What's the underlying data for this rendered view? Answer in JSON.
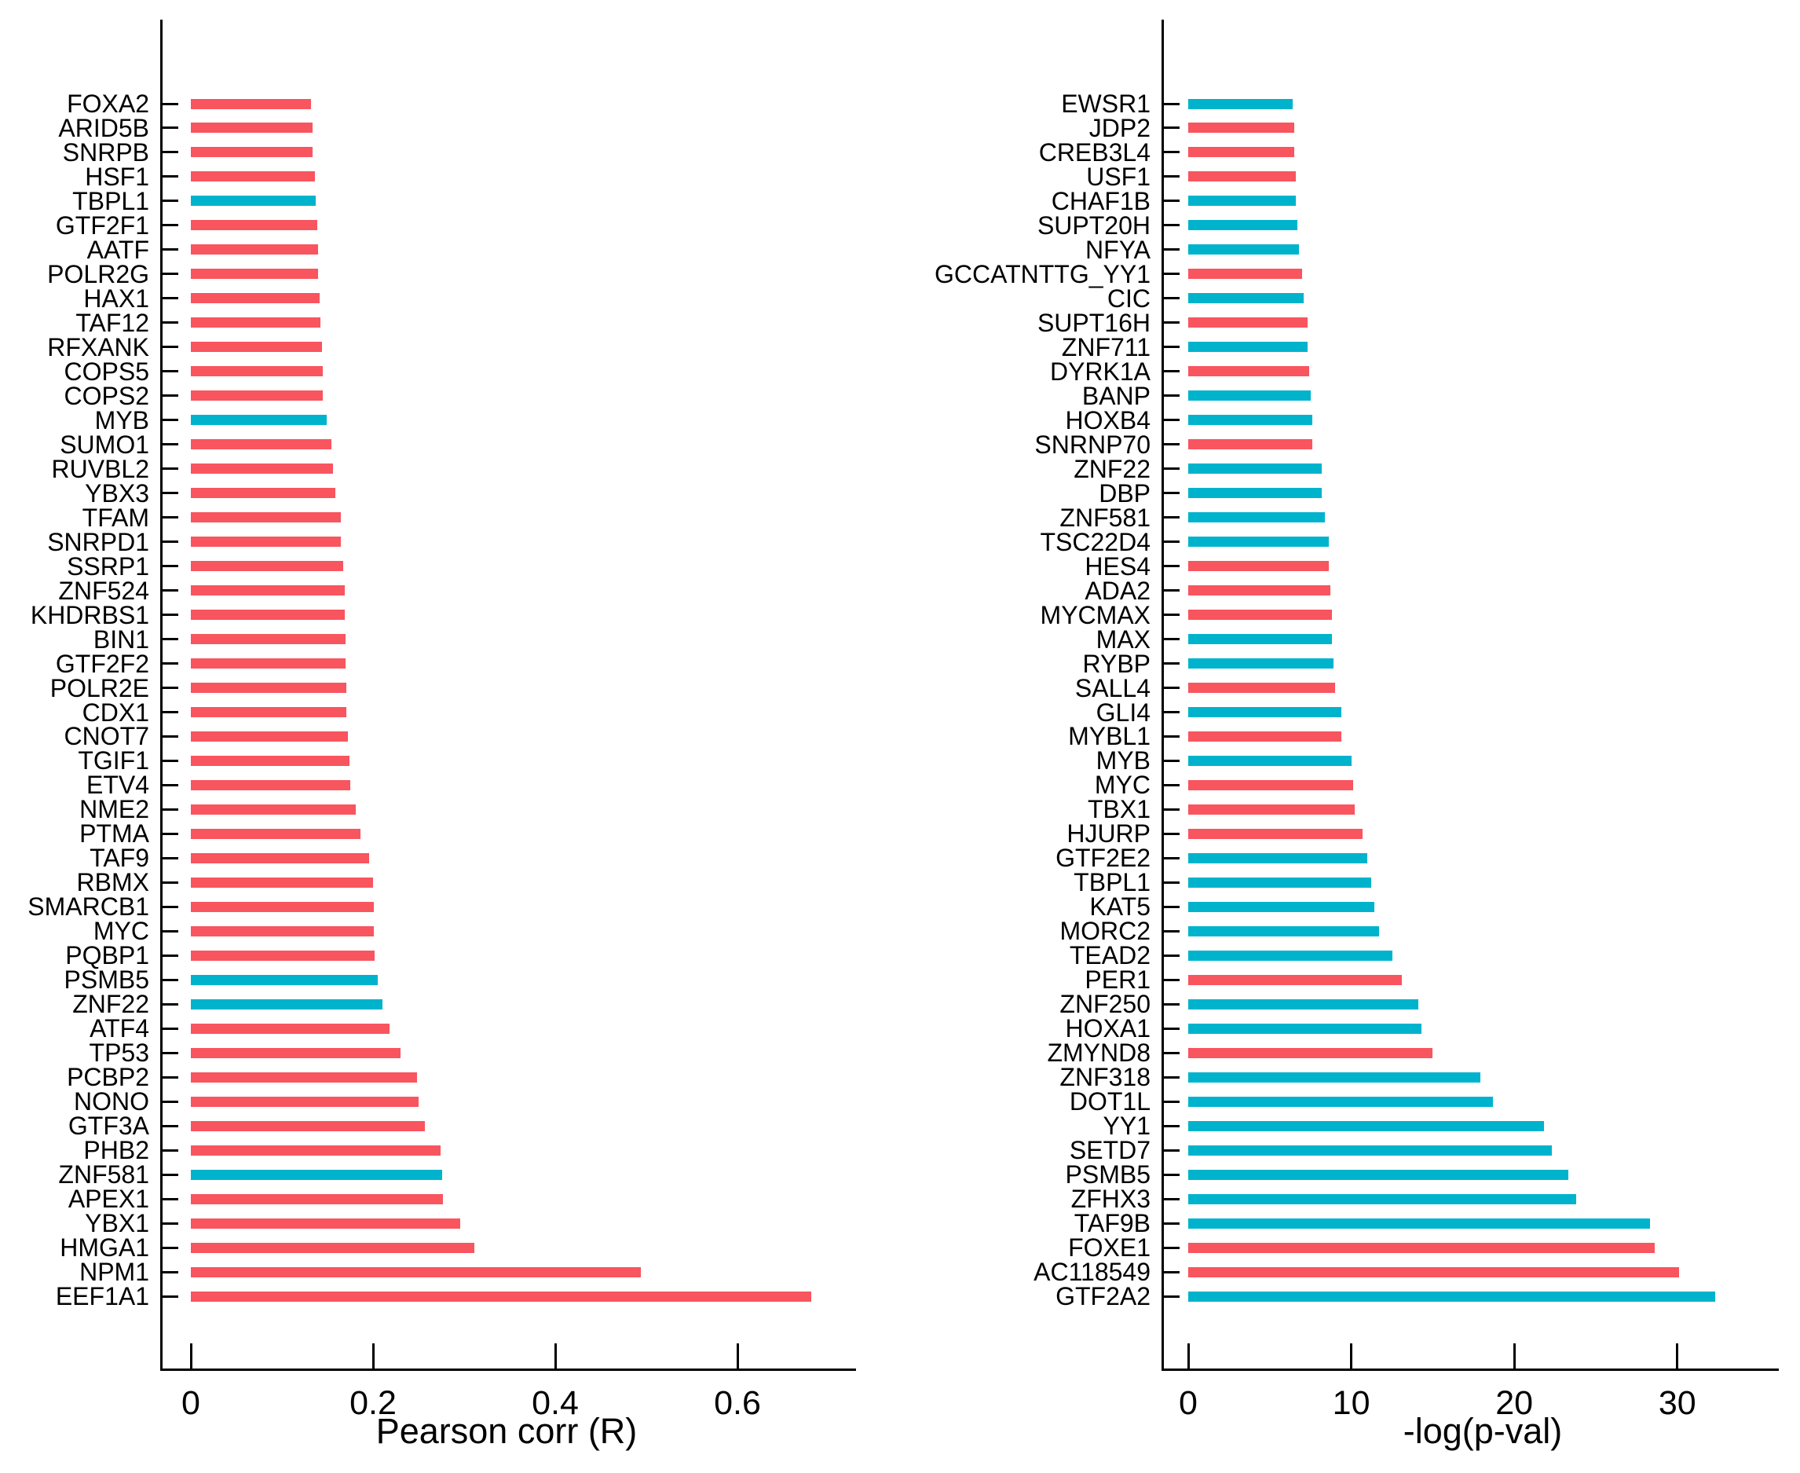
{
  "colors": {
    "red": "#F8555F",
    "cyan": "#00B3CD",
    "axis": "#000000",
    "background": "#ffffff"
  },
  "chart_data": [
    {
      "type": "bar",
      "orientation": "horizontal",
      "title": "",
      "xlabel": "Pearson corr (R)",
      "ylabel": "",
      "grid": false,
      "xlim": [
        0,
        0.73
      ],
      "xticks": {
        "values": [
          0,
          0.2,
          0.4,
          0.6
        ],
        "labels": [
          "0",
          "0.2",
          "0.4",
          "0.6"
        ]
      },
      "bars": [
        {
          "label": "FOXA2",
          "value": 0.132,
          "color": "red"
        },
        {
          "label": "ARID5B",
          "value": 0.134,
          "color": "red"
        },
        {
          "label": "SNRPB",
          "value": 0.134,
          "color": "red"
        },
        {
          "label": "HSF1",
          "value": 0.136,
          "color": "red"
        },
        {
          "label": "TBPL1",
          "value": 0.137,
          "color": "cyan"
        },
        {
          "label": "GTF2F1",
          "value": 0.139,
          "color": "red"
        },
        {
          "label": "AATF",
          "value": 0.14,
          "color": "red"
        },
        {
          "label": "POLR2G",
          "value": 0.14,
          "color": "red"
        },
        {
          "label": "HAX1",
          "value": 0.141,
          "color": "red"
        },
        {
          "label": "TAF12",
          "value": 0.142,
          "color": "red"
        },
        {
          "label": "RFXANK",
          "value": 0.144,
          "color": "red"
        },
        {
          "label": "COPS5",
          "value": 0.145,
          "color": "red"
        },
        {
          "label": "COPS2",
          "value": 0.145,
          "color": "red"
        },
        {
          "label": "MYB",
          "value": 0.149,
          "color": "cyan"
        },
        {
          "label": "SUMO1",
          "value": 0.154,
          "color": "red"
        },
        {
          "label": "RUVBL2",
          "value": 0.156,
          "color": "red"
        },
        {
          "label": "YBX3",
          "value": 0.159,
          "color": "red"
        },
        {
          "label": "TFAM",
          "value": 0.165,
          "color": "red"
        },
        {
          "label": "SNRPD1",
          "value": 0.165,
          "color": "red"
        },
        {
          "label": "SSRP1",
          "value": 0.167,
          "color": "red"
        },
        {
          "label": "ZNF524",
          "value": 0.169,
          "color": "red"
        },
        {
          "label": "KHDRBS1",
          "value": 0.169,
          "color": "red"
        },
        {
          "label": "BIN1",
          "value": 0.17,
          "color": "red"
        },
        {
          "label": "GTF2F2",
          "value": 0.17,
          "color": "red"
        },
        {
          "label": "POLR2E",
          "value": 0.171,
          "color": "red"
        },
        {
          "label": "CDX1",
          "value": 0.171,
          "color": "red"
        },
        {
          "label": "CNOT7",
          "value": 0.172,
          "color": "red"
        },
        {
          "label": "TGIF1",
          "value": 0.174,
          "color": "red"
        },
        {
          "label": "ETV4",
          "value": 0.175,
          "color": "red"
        },
        {
          "label": "NME2",
          "value": 0.181,
          "color": "red"
        },
        {
          "label": "PTMA",
          "value": 0.186,
          "color": "red"
        },
        {
          "label": "TAF9",
          "value": 0.196,
          "color": "red"
        },
        {
          "label": "RBMX",
          "value": 0.2,
          "color": "red"
        },
        {
          "label": "SMARCB1",
          "value": 0.201,
          "color": "red"
        },
        {
          "label": "MYC",
          "value": 0.201,
          "color": "red"
        },
        {
          "label": "PQBP1",
          "value": 0.202,
          "color": "red"
        },
        {
          "label": "PSMB5",
          "value": 0.205,
          "color": "cyan"
        },
        {
          "label": "ZNF22",
          "value": 0.21,
          "color": "cyan"
        },
        {
          "label": "ATF4",
          "value": 0.218,
          "color": "red"
        },
        {
          "label": "TP53",
          "value": 0.23,
          "color": "red"
        },
        {
          "label": "PCBP2",
          "value": 0.248,
          "color": "red"
        },
        {
          "label": "NONO",
          "value": 0.25,
          "color": "red"
        },
        {
          "label": "GTF3A",
          "value": 0.257,
          "color": "red"
        },
        {
          "label": "PHB2",
          "value": 0.274,
          "color": "red"
        },
        {
          "label": "ZNF581",
          "value": 0.276,
          "color": "cyan"
        },
        {
          "label": "APEX1",
          "value": 0.277,
          "color": "red"
        },
        {
          "label": "YBX1",
          "value": 0.296,
          "color": "red"
        },
        {
          "label": "HMGA1",
          "value": 0.311,
          "color": "red"
        },
        {
          "label": "NPM1",
          "value": 0.494,
          "color": "red"
        },
        {
          "label": "EEF1A1",
          "value": 0.681,
          "color": "red"
        }
      ]
    },
    {
      "type": "bar",
      "orientation": "horizontal",
      "title": "",
      "xlabel": "-log(p-val)",
      "ylabel": "",
      "grid": false,
      "xlim": [
        0,
        34
      ],
      "xticks": {
        "values": [
          0,
          10,
          20,
          30
        ],
        "labels": [
          "0",
          "10",
          "20",
          "30"
        ]
      },
      "bars": [
        {
          "label": "EWSR1",
          "value": 6.4,
          "color": "cyan"
        },
        {
          "label": "JDP2",
          "value": 6.5,
          "color": "red"
        },
        {
          "label": "CREB3L4",
          "value": 6.5,
          "color": "red"
        },
        {
          "label": "USF1",
          "value": 6.6,
          "color": "red"
        },
        {
          "label": "CHAF1B",
          "value": 6.6,
          "color": "cyan"
        },
        {
          "label": "SUPT20H",
          "value": 6.7,
          "color": "cyan"
        },
        {
          "label": "NFYA",
          "value": 6.8,
          "color": "cyan"
        },
        {
          "label": "GCCATNTTG_YY1",
          "value": 7.0,
          "color": "red"
        },
        {
          "label": "CIC",
          "value": 7.1,
          "color": "cyan"
        },
        {
          "label": "SUPT16H",
          "value": 7.3,
          "color": "red"
        },
        {
          "label": "ZNF711",
          "value": 7.3,
          "color": "cyan"
        },
        {
          "label": "DYRK1A",
          "value": 7.4,
          "color": "red"
        },
        {
          "label": "BANP",
          "value": 7.5,
          "color": "cyan"
        },
        {
          "label": "HOXB4",
          "value": 7.6,
          "color": "cyan"
        },
        {
          "label": "SNRNP70",
          "value": 7.6,
          "color": "red"
        },
        {
          "label": "ZNF22",
          "value": 8.2,
          "color": "cyan"
        },
        {
          "label": "DBP",
          "value": 8.2,
          "color": "cyan"
        },
        {
          "label": "ZNF581",
          "value": 8.4,
          "color": "cyan"
        },
        {
          "label": "TSC22D4",
          "value": 8.6,
          "color": "cyan"
        },
        {
          "label": "HES4",
          "value": 8.6,
          "color": "red"
        },
        {
          "label": "ADA2",
          "value": 8.7,
          "color": "red"
        },
        {
          "label": "MYCMAX",
          "value": 8.8,
          "color": "red"
        },
        {
          "label": "MAX",
          "value": 8.8,
          "color": "cyan"
        },
        {
          "label": "RYBP",
          "value": 8.9,
          "color": "cyan"
        },
        {
          "label": "SALL4",
          "value": 9.0,
          "color": "red"
        },
        {
          "label": "GLI4",
          "value": 9.4,
          "color": "cyan"
        },
        {
          "label": "MYBL1",
          "value": 9.4,
          "color": "red"
        },
        {
          "label": "MYB",
          "value": 10.0,
          "color": "cyan"
        },
        {
          "label": "MYC",
          "value": 10.1,
          "color": "red"
        },
        {
          "label": "TBX1",
          "value": 10.2,
          "color": "red"
        },
        {
          "label": "HJURP",
          "value": 10.7,
          "color": "red"
        },
        {
          "label": "GTF2E2",
          "value": 11.0,
          "color": "cyan"
        },
        {
          "label": "TBPL1",
          "value": 11.2,
          "color": "cyan"
        },
        {
          "label": "KAT5",
          "value": 11.4,
          "color": "cyan"
        },
        {
          "label": "MORC2",
          "value": 11.7,
          "color": "cyan"
        },
        {
          "label": "TEAD2",
          "value": 12.5,
          "color": "cyan"
        },
        {
          "label": "PER1",
          "value": 13.1,
          "color": "red"
        },
        {
          "label": "ZNF250",
          "value": 14.1,
          "color": "cyan"
        },
        {
          "label": "HOXA1",
          "value": 14.3,
          "color": "cyan"
        },
        {
          "label": "ZMYND8",
          "value": 15.0,
          "color": "red"
        },
        {
          "label": "ZNF318",
          "value": 17.9,
          "color": "cyan"
        },
        {
          "label": "DOT1L",
          "value": 18.7,
          "color": "cyan"
        },
        {
          "label": "YY1",
          "value": 21.8,
          "color": "cyan"
        },
        {
          "label": "SETD7",
          "value": 22.3,
          "color": "cyan"
        },
        {
          "label": "PSMB5",
          "value": 23.3,
          "color": "cyan"
        },
        {
          "label": "ZFHX3",
          "value": 23.8,
          "color": "cyan"
        },
        {
          "label": "TAF9B",
          "value": 28.3,
          "color": "cyan"
        },
        {
          "label": "FOXE1",
          "value": 28.6,
          "color": "red"
        },
        {
          "label": "AC118549",
          "value": 30.1,
          "color": "red"
        },
        {
          "label": "GTF2A2",
          "value": 32.3,
          "color": "cyan"
        }
      ]
    }
  ]
}
